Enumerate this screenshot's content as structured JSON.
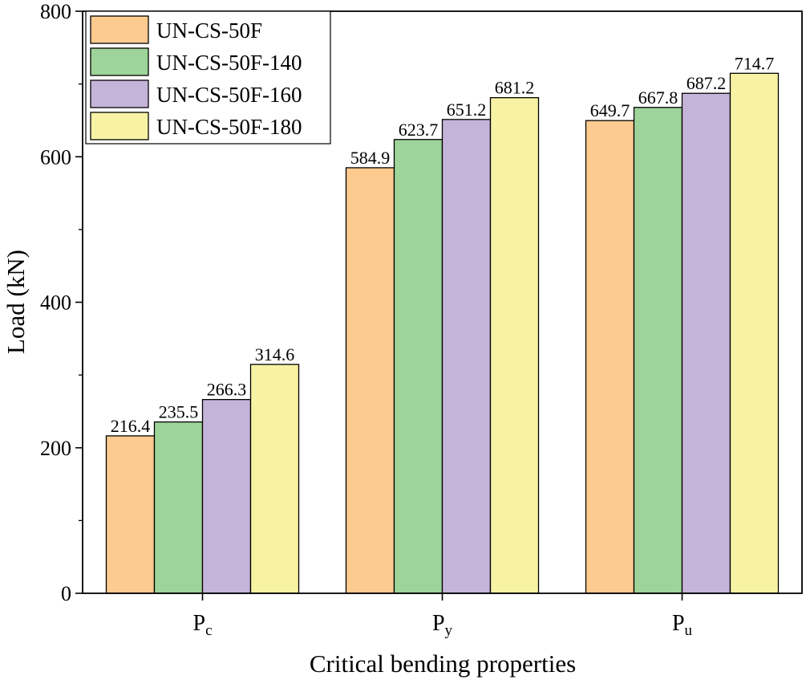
{
  "chart_data": {
    "type": "bar",
    "title": "",
    "xlabel": "Critical bending properties",
    "ylabel": "Load (kN)",
    "ylim": [
      0,
      800
    ],
    "yticks": [
      0,
      200,
      400,
      600,
      800
    ],
    "grid": false,
    "legend_position": "top-left",
    "categories": [
      {
        "main": "P",
        "sub": "c"
      },
      {
        "main": "P",
        "sub": "y"
      },
      {
        "main": "P",
        "sub": "u"
      }
    ],
    "series": [
      {
        "name": "UN-CS-50F",
        "color": "#FDCB8F",
        "values": [
          216.4,
          584.9,
          649.7
        ],
        "labels": [
          "216.4",
          "584.9",
          "649.7"
        ]
      },
      {
        "name": "UN-CS-50F-140",
        "color": "#9ED49A",
        "values": [
          235.5,
          623.7,
          667.8
        ],
        "labels": [
          "235.5",
          "623.7",
          "667.8"
        ]
      },
      {
        "name": "UN-CS-50F-160",
        "color": "#C5B4D9",
        "values": [
          266.3,
          651.2,
          687.2
        ],
        "labels": [
          "266.3",
          "651.2",
          "687.2"
        ]
      },
      {
        "name": "UN-CS-50F-180",
        "color": "#F8F3A4",
        "values": [
          314.6,
          681.2,
          714.7
        ],
        "labels": [
          "314.6",
          "681.2",
          "714.7"
        ]
      }
    ]
  }
}
